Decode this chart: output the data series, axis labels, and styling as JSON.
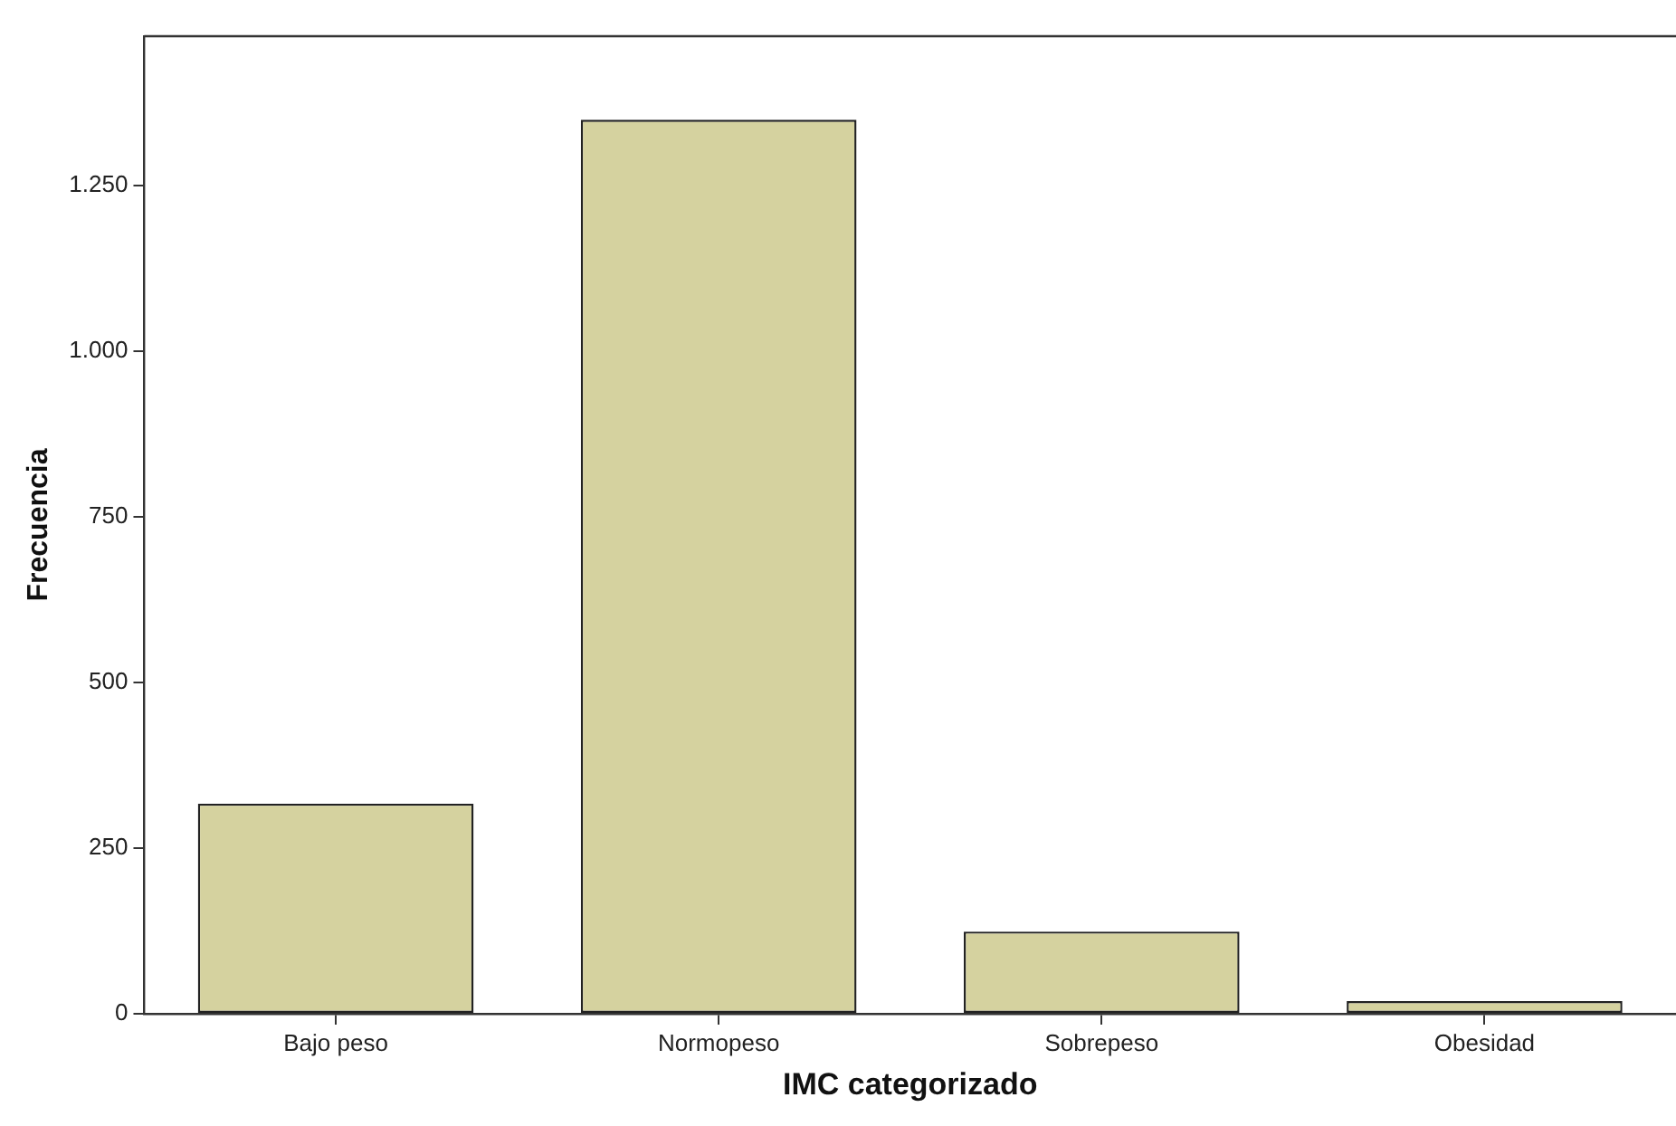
{
  "chart_data": {
    "type": "bar",
    "xlabel": "IMC categorizado",
    "ylabel": "Frecuencia",
    "categories": [
      "Bajo peso",
      "Normopeso",
      "Sobrepeso",
      "Obesidad"
    ],
    "values": [
      317,
      1349,
      124,
      19
    ],
    "color": "#d5d29f",
    "ylim": [
      0,
      1475
    ],
    "yticks": [
      0,
      250,
      500,
      750,
      {
        "value": 1000,
        "label": "1.000"
      },
      {
        "value": 1250,
        "label": "1.250"
      }
    ],
    "grid": false,
    "legend": false
  }
}
